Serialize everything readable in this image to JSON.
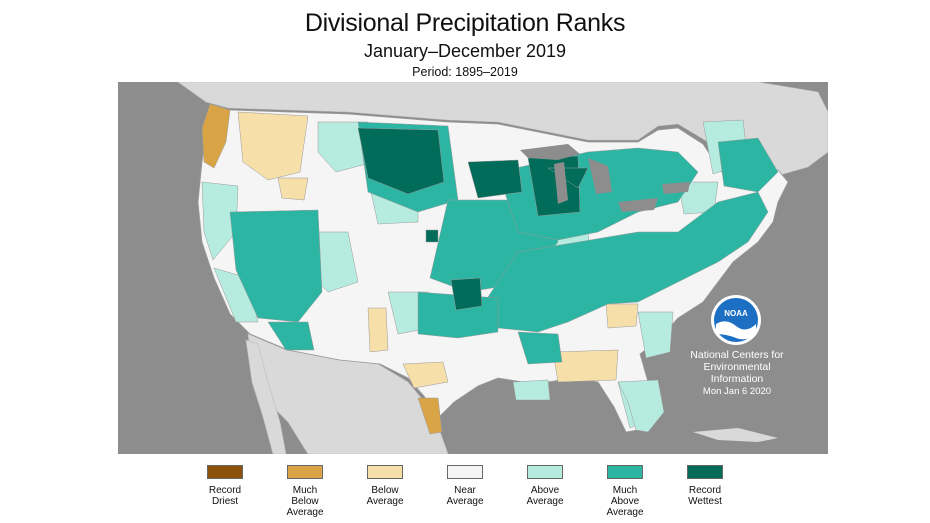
{
  "title": "Divisional Precipitation Ranks",
  "subtitle": "January–December 2019",
  "period": "Period: 1895–2019",
  "credit": {
    "org_line1": "National Centers for",
    "org_line2": "Environmental",
    "org_line3": "Information",
    "date": "Mon Jan  6 2020",
    "logo_text": "NOAA"
  },
  "colors": {
    "record_driest": "#8c510a",
    "much_below": "#d8a446",
    "below": "#f6dfa9",
    "near": "#f5f5f5",
    "above": "#b6ebe0",
    "much_above": "#2db5a3",
    "record_wettest": "#016c59",
    "land": "#d9d9d9",
    "water": "#8d8d8d"
  },
  "legend": [
    {
      "key": "record_driest",
      "label": "Record\nDriest",
      "color": "#8c510a"
    },
    {
      "key": "much_below",
      "label": "Much\nBelow\nAverage",
      "color": "#d8a446"
    },
    {
      "key": "below",
      "label": "Below\nAverage",
      "color": "#f6dfa9"
    },
    {
      "key": "near",
      "label": "Near\nAverage",
      "color": "#f5f5f5"
    },
    {
      "key": "above",
      "label": "Above\nAverage",
      "color": "#b6ebe0"
    },
    {
      "key": "much_above",
      "label": "Much\nAbove\nAverage",
      "color": "#2db5a3"
    },
    {
      "key": "record_wettest",
      "label": "Record\nWettest",
      "color": "#016c59"
    }
  ]
}
